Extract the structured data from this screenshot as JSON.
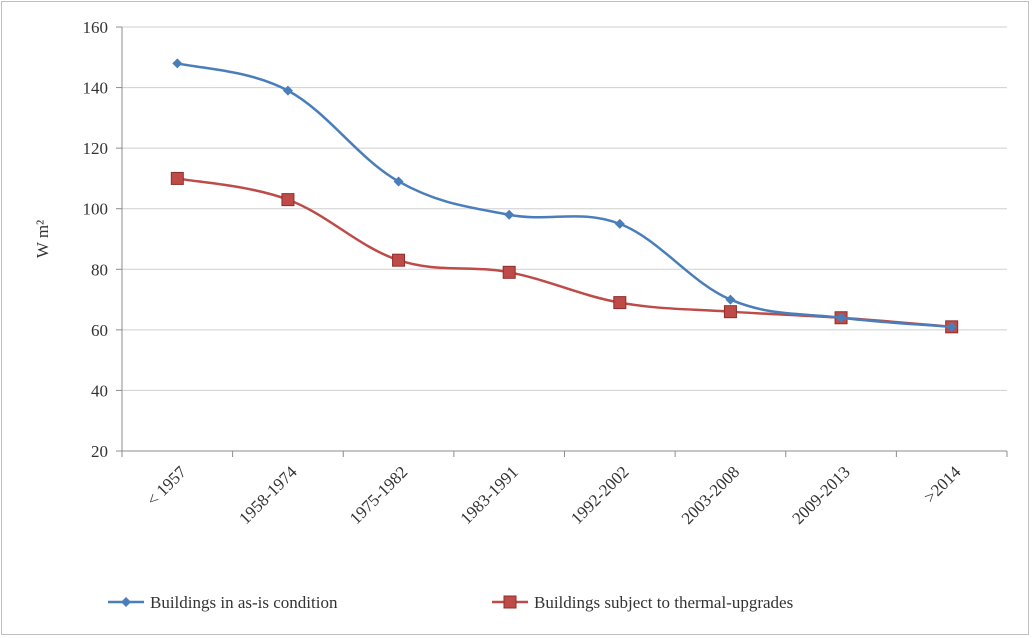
{
  "chart_data": {
    "type": "line",
    "title": "",
    "xlabel": "",
    "ylabel": "W m²",
    "ylim": [
      20,
      160
    ],
    "yticks": [
      20,
      40,
      60,
      80,
      100,
      120,
      140,
      160
    ],
    "grid": true,
    "legend_position": "bottom",
    "categories": [
      "< 1957",
      "1958-1974",
      "1975-1982",
      "1983-1991",
      "1992-2002",
      "2003-2008",
      "2009-2013",
      ">2014"
    ],
    "series": [
      {
        "name": "Buildings in as-is condition",
        "color": "#4a7ebb",
        "marker": "diamond",
        "values": [
          148,
          139,
          109,
          98,
          95,
          70,
          64,
          61
        ]
      },
      {
        "name": "Buildings subject to thermal-upgrades",
        "color": "#be4b48",
        "marker": "square",
        "values": [
          110,
          103,
          83,
          79,
          69,
          66,
          64,
          61
        ]
      }
    ]
  }
}
